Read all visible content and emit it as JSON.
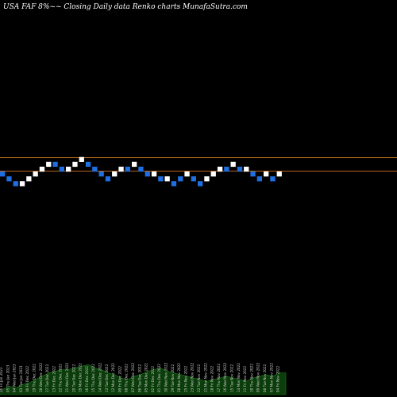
{
  "header": {
    "title": "USA FAF 8%~~ Closing Daily data Renko charts MunafaSutra.com"
  },
  "chart_data": {
    "type": "renko",
    "title": "USA FAF 8%~~ Closing Daily data Renko charts MunafaSutra.com",
    "brick_unit": "levels",
    "bricks": [
      {
        "level": 0,
        "dir": "down"
      },
      {
        "level": -1,
        "dir": "down"
      },
      {
        "level": -2,
        "dir": "down"
      },
      {
        "level": -2,
        "dir": "up"
      },
      {
        "level": -1,
        "dir": "up"
      },
      {
        "level": 0,
        "dir": "up"
      },
      {
        "level": 1,
        "dir": "up"
      },
      {
        "level": 2,
        "dir": "up"
      },
      {
        "level": 2,
        "dir": "down"
      },
      {
        "level": 1,
        "dir": "down"
      },
      {
        "level": 1,
        "dir": "up"
      },
      {
        "level": 2,
        "dir": "up"
      },
      {
        "level": 3,
        "dir": "up"
      },
      {
        "level": 2,
        "dir": "down"
      },
      {
        "level": 1,
        "dir": "down"
      },
      {
        "level": 0,
        "dir": "down"
      },
      {
        "level": -1,
        "dir": "down"
      },
      {
        "level": 0,
        "dir": "up"
      },
      {
        "level": 1,
        "dir": "up"
      },
      {
        "level": 1,
        "dir": "down"
      },
      {
        "level": 2,
        "dir": "up"
      },
      {
        "level": 1,
        "dir": "down"
      },
      {
        "level": 0,
        "dir": "down"
      },
      {
        "level": 0,
        "dir": "up"
      },
      {
        "level": -1,
        "dir": "down"
      },
      {
        "level": -1,
        "dir": "up"
      },
      {
        "level": -2,
        "dir": "down"
      },
      {
        "level": -1,
        "dir": "down"
      },
      {
        "level": 0,
        "dir": "up"
      },
      {
        "level": -1,
        "dir": "down"
      },
      {
        "level": -2,
        "dir": "down"
      },
      {
        "level": -1,
        "dir": "up"
      },
      {
        "level": 0,
        "dir": "up"
      },
      {
        "level": 1,
        "dir": "up"
      },
      {
        "level": 1,
        "dir": "down"
      },
      {
        "level": 2,
        "dir": "up"
      },
      {
        "level": 1,
        "dir": "down"
      },
      {
        "level": 1,
        "dir": "up"
      },
      {
        "level": 0,
        "dir": "down"
      },
      {
        "level": -1,
        "dir": "down"
      },
      {
        "level": 0,
        "dir": "up"
      },
      {
        "level": -1,
        "dir": "down"
      },
      {
        "level": 0,
        "dir": "up"
      }
    ],
    "date_labels": [
      "06 Fri Jan 2023",
      "05 Thu Jan 2023",
      "04 Wed Jan 2023",
      "03 Tue Jan 2023",
      "30 Fri Dec 2022",
      "29 Thu Dec 2022",
      "28 Wed Dec 2022",
      "27 Tue Dec 2022",
      "23 Fri Dec 2022",
      "22 Thu Dec 2022",
      "21 Wed Dec 2022",
      "20 Tue Dec 2022",
      "19 Mon Dec 2022",
      "16 Fri Dec 2022",
      "15 Thu Dec 2022",
      "14 Wed Dec 2022",
      "13 Tue Dec 2022",
      "12 Mon Dec 2022",
      "09 Fri Dec 2022",
      "08 Thu Dec 2022",
      "07 Wed Dec 2022",
      "06 Tue Dec 2022",
      "05 Mon Dec 2022",
      "02 Fri Dec 2022",
      "01 Thu Dec 2022",
      "30 Wed Nov 2022",
      "29 Tue Nov 2022",
      "28 Mon Nov 2022",
      "25 Fri Nov 2022",
      "23 Wed Nov 2022",
      "22 Tue Nov 2022",
      "21 Mon Nov 2022",
      "18 Fri Nov 2022",
      "17 Thu Nov 2022",
      "16 Wed Nov 2022",
      "15 Tue Nov 2022",
      "14 Mon Nov 2022",
      "11 Fri Nov 2022",
      "10 Thu Nov 2022",
      "09 Wed Nov 2022",
      "08 Tue Nov 2022",
      "07 Mon Nov 2022",
      "04 Fri Nov 2022"
    ],
    "volume": [
      3,
      5,
      4,
      6,
      7,
      9,
      11,
      13,
      14,
      15,
      15,
      16,
      17,
      18,
      16,
      15,
      13,
      12,
      10,
      9,
      11,
      12,
      14,
      15,
      16,
      14,
      13,
      12,
      11,
      10,
      9,
      8,
      9,
      10,
      11,
      10,
      9,
      8,
      10,
      11,
      12,
      11,
      13
    ],
    "grid": false,
    "colors": {
      "background": "#000000",
      "up_brick": "#ffffff",
      "down_brick": "#1f6fe0",
      "reference_line": "#b5651d",
      "volume_area": "#0b3d0b",
      "volume_edge": "#1a7a1a"
    }
  }
}
